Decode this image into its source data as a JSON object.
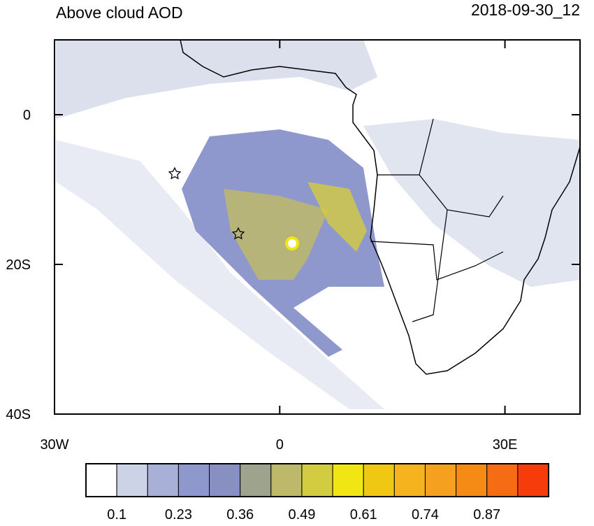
{
  "header": {
    "title": "Above cloud AOD",
    "timestamp": "2018-09-30_12"
  },
  "map": {
    "xlim": [
      -30,
      40
    ],
    "ylim": [
      -40,
      10
    ],
    "xticks": [
      {
        "value": -30,
        "label": "30W"
      },
      {
        "value": 0,
        "label": "0"
      },
      {
        "value": 30,
        "label": "30E"
      }
    ],
    "yticks": [
      {
        "value": 0,
        "label": "0"
      },
      {
        "value": -20,
        "label": "20S"
      },
      {
        "value": -40,
        "label": "40S"
      }
    ]
  },
  "colorbar": {
    "colors": [
      "#ffffff",
      "#cdd3e6",
      "#a8b0d8",
      "#8e98cc",
      "#8790c0",
      "#9ea38e",
      "#bdb86a",
      "#d4cc40",
      "#f0e614",
      "#f0c814",
      "#f5b41e",
      "#f5a01e",
      "#f58a14",
      "#f56c14",
      "#f53c0a"
    ],
    "labels": [
      0.1,
      0.23,
      0.36,
      0.49,
      0.61,
      0.74,
      0.87
    ]
  }
}
